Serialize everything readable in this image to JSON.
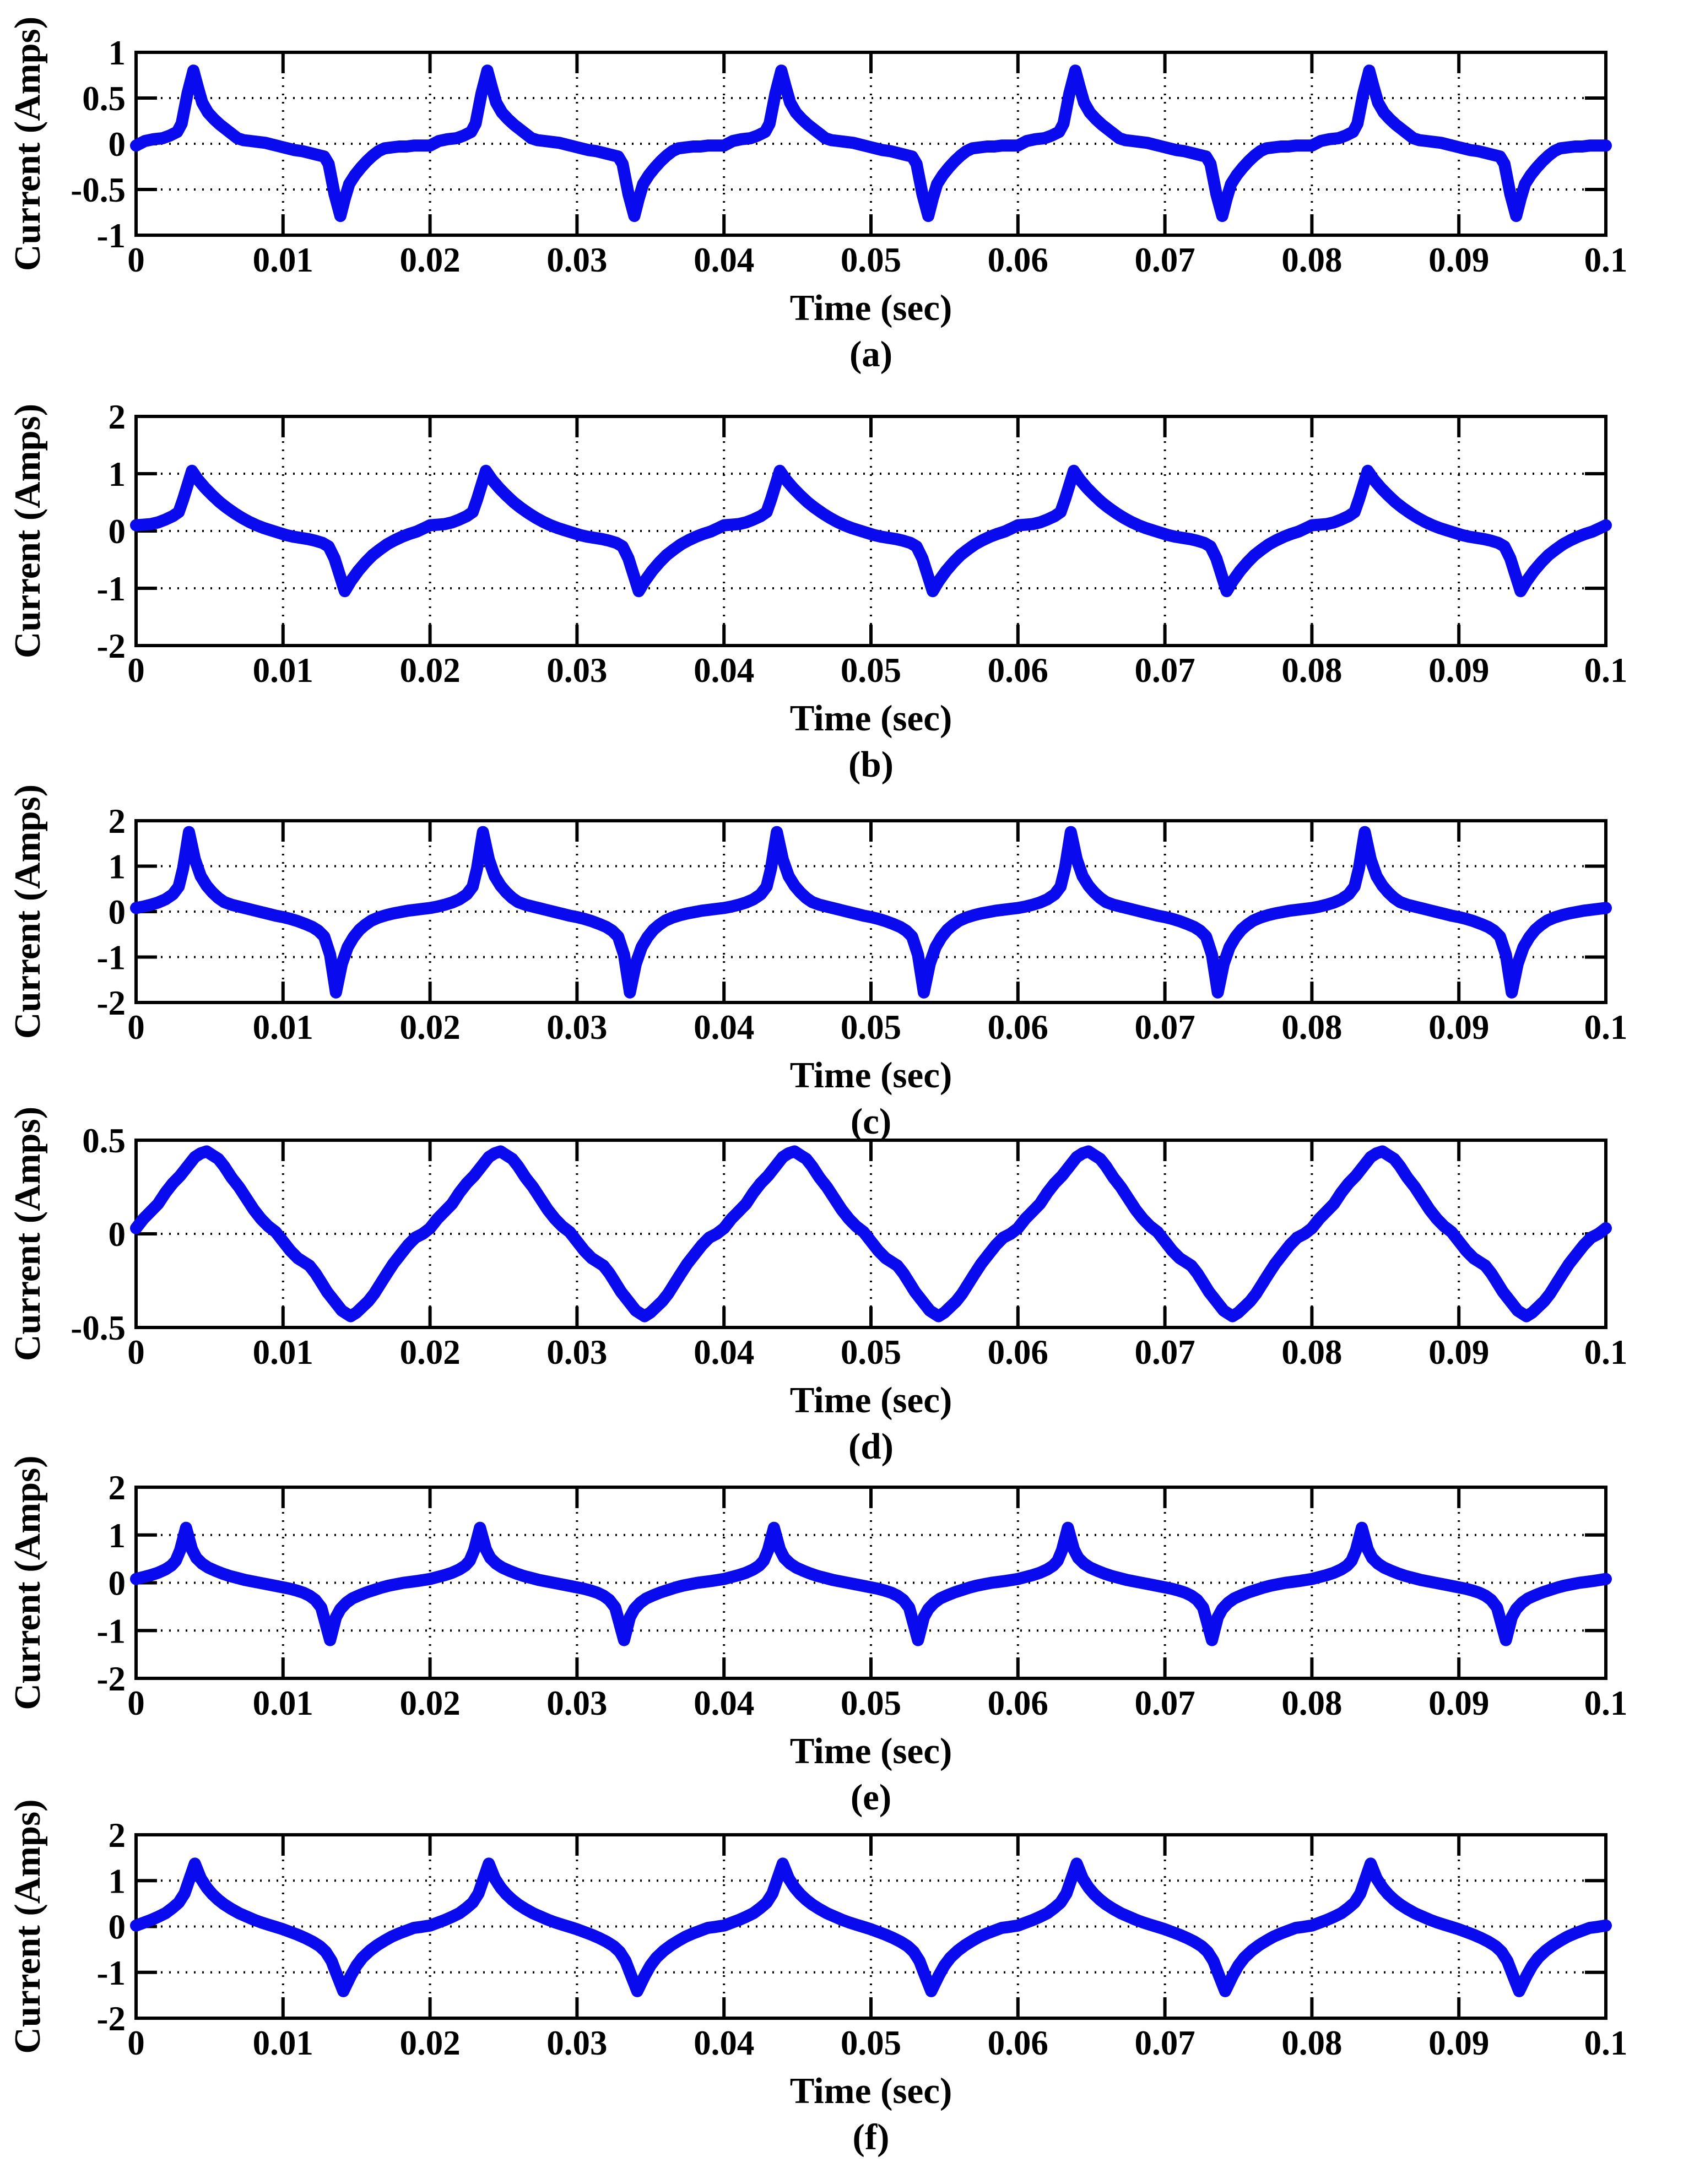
{
  "figure": {
    "background": "#FFFFFF",
    "axis_color": "#000000",
    "line_color": "#0A0AEE"
  },
  "chart_data": [
    {
      "id": "a",
      "type": "line",
      "caption": "(a)",
      "xlabel": "Time (sec)",
      "ylabel": "Current (Amps)",
      "xlim": [
        0,
        0.1
      ],
      "ylim": [
        -1,
        1
      ],
      "x_ticks": [
        0,
        0.01,
        0.02,
        0.03,
        0.04,
        0.05,
        0.06,
        0.07,
        0.08,
        0.09,
        0.1
      ],
      "x_tick_labels": [
        "0",
        "0.01",
        "0.02",
        "0.03",
        "0.04",
        "0.05",
        "0.06",
        "0.07",
        "0.08",
        "0.09",
        "0.1"
      ],
      "y_ticks": [
        1,
        0.5,
        0,
        -0.5,
        -1
      ],
      "y_tick_labels": [
        "1",
        "0.5",
        "0",
        "-0.5",
        "-1"
      ],
      "grid": "dotted",
      "legend": "none",
      "line_color": "#0A0AEE",
      "period_sec": 0.02,
      "cycles": 5,
      "peak_amp": 0.8,
      "min_amp": -0.79,
      "one_period_ms_amps": [
        [
          0,
          -0.02
        ],
        [
          0.6,
          0.03
        ],
        [
          1.2,
          0.05
        ],
        [
          1.8,
          0.06
        ],
        [
          2.3,
          0.09
        ],
        [
          2.8,
          0.13
        ],
        [
          3.1,
          0.22
        ],
        [
          3.5,
          0.55
        ],
        [
          3.9,
          0.8
        ],
        [
          4.2,
          0.62
        ],
        [
          4.5,
          0.45
        ],
        [
          4.9,
          0.34
        ],
        [
          5.3,
          0.27
        ],
        [
          5.7,
          0.21
        ],
        [
          6.1,
          0.16
        ],
        [
          6.5,
          0.11
        ],
        [
          6.9,
          0.06
        ],
        [
          7.3,
          0.04
        ],
        [
          7.8,
          0.03
        ],
        [
          8.3,
          0.02
        ],
        [
          8.8,
          0.01
        ],
        [
          9.3,
          -0.01
        ],
        [
          9.8,
          -0.03
        ],
        [
          10.3,
          -0.05
        ],
        [
          10.8,
          -0.07
        ],
        [
          11.3,
          -0.08
        ],
        [
          11.8,
          -0.1
        ],
        [
          12.3,
          -0.12
        ],
        [
          12.8,
          -0.14
        ],
        [
          13.1,
          -0.22
        ],
        [
          13.5,
          -0.55
        ],
        [
          13.9,
          -0.79
        ],
        [
          14.2,
          -0.6
        ],
        [
          14.5,
          -0.44
        ],
        [
          14.9,
          -0.34
        ],
        [
          15.3,
          -0.26
        ],
        [
          15.7,
          -0.19
        ],
        [
          16.1,
          -0.13
        ],
        [
          16.5,
          -0.08
        ],
        [
          16.9,
          -0.05
        ],
        [
          17.4,
          -0.04
        ],
        [
          17.9,
          -0.03
        ],
        [
          18.4,
          -0.03
        ],
        [
          18.9,
          -0.02
        ],
        [
          19.4,
          -0.02
        ],
        [
          20,
          -0.02
        ]
      ]
    },
    {
      "id": "b",
      "type": "line",
      "caption": "(b)",
      "xlabel": "Time (sec)",
      "ylabel": "Current (Amps)",
      "xlim": [
        0,
        0.1
      ],
      "ylim": [
        -2,
        2
      ],
      "x_ticks": [
        0,
        0.01,
        0.02,
        0.03,
        0.04,
        0.05,
        0.06,
        0.07,
        0.08,
        0.09,
        0.1
      ],
      "x_tick_labels": [
        "0",
        "0.01",
        "0.02",
        "0.03",
        "0.04",
        "0.05",
        "0.06",
        "0.07",
        "0.08",
        "0.09",
        "0.1"
      ],
      "y_ticks": [
        2,
        1,
        0,
        -1,
        -2
      ],
      "y_tick_labels": [
        "2",
        "1",
        "0",
        "-1",
        "-2"
      ],
      "grid": "dotted",
      "legend": "none",
      "line_color": "#0A0AEE",
      "period_sec": 0.02,
      "cycles": 5,
      "peak_amp": 1.05,
      "min_amp": -1.05,
      "one_period_ms_amps": [
        [
          0,
          0.1
        ],
        [
          0.5,
          0.11
        ],
        [
          1,
          0.12
        ],
        [
          1.5,
          0.15
        ],
        [
          2,
          0.2
        ],
        [
          2.5,
          0.26
        ],
        [
          2.9,
          0.33
        ],
        [
          3.2,
          0.55
        ],
        [
          3.8,
          1.05
        ],
        [
          4.2,
          0.9
        ],
        [
          4.7,
          0.75
        ],
        [
          5.2,
          0.62
        ],
        [
          5.7,
          0.5
        ],
        [
          6.2,
          0.4
        ],
        [
          6.7,
          0.31
        ],
        [
          7.2,
          0.23
        ],
        [
          7.7,
          0.16
        ],
        [
          8.2,
          0.1
        ],
        [
          8.7,
          0.05
        ],
        [
          9.2,
          0.01
        ],
        [
          9.7,
          -0.03
        ],
        [
          10.2,
          -0.07
        ],
        [
          10.7,
          -0.1
        ],
        [
          11.2,
          -0.12
        ],
        [
          11.7,
          -0.14
        ],
        [
          12.2,
          -0.17
        ],
        [
          12.7,
          -0.21
        ],
        [
          13.1,
          -0.27
        ],
        [
          13.5,
          -0.48
        ],
        [
          14.2,
          -1.05
        ],
        [
          14.6,
          -0.88
        ],
        [
          15.1,
          -0.7
        ],
        [
          15.6,
          -0.55
        ],
        [
          16.1,
          -0.42
        ],
        [
          16.6,
          -0.32
        ],
        [
          17.1,
          -0.23
        ],
        [
          17.6,
          -0.16
        ],
        [
          18.1,
          -0.1
        ],
        [
          18.6,
          -0.05
        ],
        [
          19.1,
          -0.01
        ],
        [
          19.6,
          0.05
        ],
        [
          20,
          0.1
        ]
      ]
    },
    {
      "id": "c",
      "type": "line",
      "caption": "(c)",
      "xlabel": "Time (sec)",
      "ylabel": "Current (Amps)",
      "xlim": [
        0,
        0.1
      ],
      "ylim": [
        -2,
        2
      ],
      "x_ticks": [
        0,
        0.01,
        0.02,
        0.03,
        0.04,
        0.05,
        0.06,
        0.07,
        0.08,
        0.09,
        0.1
      ],
      "x_tick_labels": [
        "0",
        "0.01",
        "0.02",
        "0.03",
        "0.04",
        "0.05",
        "0.06",
        "0.07",
        "0.08",
        "0.09",
        "0.1"
      ],
      "y_ticks": [
        2,
        1,
        0,
        -1,
        -2
      ],
      "y_tick_labels": [
        "2",
        "1",
        "0",
        "-1",
        "-2"
      ],
      "grid": "dotted",
      "legend": "none",
      "line_color": "#0A0AEE",
      "period_sec": 0.02,
      "cycles": 5,
      "peak_amp": 1.75,
      "min_amp": -1.78,
      "one_period_ms_amps": [
        [
          0,
          0.08
        ],
        [
          0.5,
          0.11
        ],
        [
          1,
          0.15
        ],
        [
          1.5,
          0.2
        ],
        [
          2,
          0.27
        ],
        [
          2.5,
          0.38
        ],
        [
          2.9,
          0.55
        ],
        [
          3.2,
          0.95
        ],
        [
          3.6,
          1.75
        ],
        [
          4,
          1.15
        ],
        [
          4.4,
          0.78
        ],
        [
          4.8,
          0.57
        ],
        [
          5.2,
          0.42
        ],
        [
          5.6,
          0.3
        ],
        [
          6,
          0.21
        ],
        [
          6.5,
          0.15
        ],
        [
          7,
          0.11
        ],
        [
          7.5,
          0.07
        ],
        [
          8,
          0.03
        ],
        [
          8.5,
          -0.01
        ],
        [
          9,
          -0.05
        ],
        [
          9.5,
          -0.09
        ],
        [
          10,
          -0.12
        ],
        [
          10.5,
          -0.16
        ],
        [
          11,
          -0.21
        ],
        [
          11.5,
          -0.27
        ],
        [
          12,
          -0.34
        ],
        [
          12.4,
          -0.42
        ],
        [
          12.8,
          -0.55
        ],
        [
          13.2,
          -0.95
        ],
        [
          13.6,
          -1.78
        ],
        [
          14,
          -1.15
        ],
        [
          14.4,
          -0.78
        ],
        [
          14.8,
          -0.56
        ],
        [
          15.2,
          -0.4
        ],
        [
          15.6,
          -0.29
        ],
        [
          16,
          -0.2
        ],
        [
          16.5,
          -0.13
        ],
        [
          17,
          -0.08
        ],
        [
          17.5,
          -0.04
        ],
        [
          18,
          -0.01
        ],
        [
          18.5,
          0.02
        ],
        [
          19,
          0.04
        ],
        [
          19.5,
          0.06
        ],
        [
          20,
          0.08
        ]
      ]
    },
    {
      "id": "d",
      "type": "line",
      "caption": "(d)",
      "xlabel": "Time (sec)",
      "ylabel": "Current (Amps)",
      "xlim": [
        0,
        0.1
      ],
      "ylim": [
        -0.5,
        0.5
      ],
      "x_ticks": [
        0,
        0.01,
        0.02,
        0.03,
        0.04,
        0.05,
        0.06,
        0.07,
        0.08,
        0.09,
        0.1
      ],
      "x_tick_labels": [
        "0",
        "0.01",
        "0.02",
        "0.03",
        "0.04",
        "0.05",
        "0.06",
        "0.07",
        "0.08",
        "0.09",
        "0.1"
      ],
      "y_ticks": [
        0.5,
        0,
        -0.5
      ],
      "y_tick_labels": [
        "0.5",
        "0",
        "-0.5"
      ],
      "grid": "dotted",
      "legend": "none",
      "line_color": "#0A0AEE",
      "period_sec": 0.02,
      "cycles": 5,
      "peak_amp": 0.44,
      "min_amp": -0.44,
      "one_period_ms_amps": [
        [
          0,
          0.03
        ],
        [
          0.5,
          0.08
        ],
        [
          1,
          0.12
        ],
        [
          1.5,
          0.16
        ],
        [
          2,
          0.22
        ],
        [
          2.5,
          0.27
        ],
        [
          3,
          0.31
        ],
        [
          3.5,
          0.36
        ],
        [
          4,
          0.41
        ],
        [
          4.4,
          0.43
        ],
        [
          4.8,
          0.44
        ],
        [
          5.2,
          0.42
        ],
        [
          5.6,
          0.4
        ],
        [
          6,
          0.36
        ],
        [
          6.5,
          0.3
        ],
        [
          7,
          0.25
        ],
        [
          7.5,
          0.19
        ],
        [
          8,
          0.13
        ],
        [
          8.5,
          0.08
        ],
        [
          9,
          0.04
        ],
        [
          9.5,
          0.01
        ],
        [
          10,
          -0.04
        ],
        [
          10.5,
          -0.09
        ],
        [
          11,
          -0.13
        ],
        [
          11.4,
          -0.15
        ],
        [
          11.8,
          -0.17
        ],
        [
          12.2,
          -0.21
        ],
        [
          12.6,
          -0.26
        ],
        [
          13,
          -0.31
        ],
        [
          13.5,
          -0.36
        ],
        [
          14,
          -0.41
        ],
        [
          14.6,
          -0.44
        ],
        [
          15,
          -0.42
        ],
        [
          15.4,
          -0.39
        ],
        [
          15.8,
          -0.36
        ],
        [
          16.2,
          -0.32
        ],
        [
          16.6,
          -0.27
        ],
        [
          17,
          -0.22
        ],
        [
          17.5,
          -0.16
        ],
        [
          18,
          -0.11
        ],
        [
          18.5,
          -0.06
        ],
        [
          19,
          -0.02
        ],
        [
          19.5,
          0.0
        ],
        [
          20,
          0.03
        ]
      ]
    },
    {
      "id": "e",
      "type": "line",
      "caption": "(e)",
      "xlabel": "Time (sec)",
      "ylabel": "Current (Amps)",
      "xlim": [
        0,
        0.1
      ],
      "ylim": [
        -2,
        2
      ],
      "x_ticks": [
        0,
        0.01,
        0.02,
        0.03,
        0.04,
        0.05,
        0.06,
        0.07,
        0.08,
        0.09,
        0.1
      ],
      "x_tick_labels": [
        "0",
        "0.01",
        "0.02",
        "0.03",
        "0.04",
        "0.05",
        "0.06",
        "0.07",
        "0.08",
        "0.09",
        "0.1"
      ],
      "y_ticks": [
        2,
        1,
        0,
        -1,
        -2
      ],
      "y_tick_labels": [
        "2",
        "1",
        "0",
        "-1",
        "-2"
      ],
      "grid": "dotted",
      "legend": "none",
      "line_color": "#0A0AEE",
      "period_sec": 0.02,
      "cycles": 5,
      "peak_amp": 1.15,
      "min_amp": -1.2,
      "one_period_ms_amps": [
        [
          0,
          0.08
        ],
        [
          0.5,
          0.12
        ],
        [
          1,
          0.16
        ],
        [
          1.5,
          0.21
        ],
        [
          2,
          0.28
        ],
        [
          2.4,
          0.36
        ],
        [
          2.7,
          0.46
        ],
        [
          3,
          0.68
        ],
        [
          3.4,
          1.15
        ],
        [
          3.8,
          0.7
        ],
        [
          4.1,
          0.52
        ],
        [
          4.5,
          0.4
        ],
        [
          4.9,
          0.32
        ],
        [
          5.4,
          0.25
        ],
        [
          5.9,
          0.19
        ],
        [
          6.4,
          0.14
        ],
        [
          6.9,
          0.1
        ],
        [
          7.4,
          0.06
        ],
        [
          7.9,
          0.03
        ],
        [
          8.4,
          0.0
        ],
        [
          8.9,
          -0.03
        ],
        [
          9.4,
          -0.06
        ],
        [
          9.9,
          -0.09
        ],
        [
          10.4,
          -0.12
        ],
        [
          10.9,
          -0.16
        ],
        [
          11.4,
          -0.21
        ],
        [
          11.8,
          -0.27
        ],
        [
          12.2,
          -0.36
        ],
        [
          12.6,
          -0.52
        ],
        [
          13.2,
          -1.2
        ],
        [
          13.6,
          -0.72
        ],
        [
          13.9,
          -0.55
        ],
        [
          14.3,
          -0.42
        ],
        [
          14.7,
          -0.33
        ],
        [
          15.2,
          -0.26
        ],
        [
          15.7,
          -0.2
        ],
        [
          16.2,
          -0.15
        ],
        [
          16.7,
          -0.1
        ],
        [
          17.2,
          -0.06
        ],
        [
          17.7,
          -0.03
        ],
        [
          18.2,
          0.0
        ],
        [
          18.7,
          0.02
        ],
        [
          19.2,
          0.04
        ],
        [
          19.6,
          0.06
        ],
        [
          20,
          0.08
        ]
      ]
    },
    {
      "id": "f",
      "type": "line",
      "caption": "(f)",
      "xlabel": "Time (sec)",
      "ylabel": "Current (Amps)",
      "xlim": [
        0,
        0.1
      ],
      "ylim": [
        -2,
        2
      ],
      "x_ticks": [
        0,
        0.01,
        0.02,
        0.03,
        0.04,
        0.05,
        0.06,
        0.07,
        0.08,
        0.09,
        0.1
      ],
      "x_tick_labels": [
        "0",
        "0.01",
        "0.02",
        "0.03",
        "0.04",
        "0.05",
        "0.06",
        "0.07",
        "0.08",
        "0.09",
        "0.1"
      ],
      "y_ticks": [
        2,
        1,
        0,
        -1,
        -2
      ],
      "y_tick_labels": [
        "2",
        "1",
        "0",
        "-1",
        "-2"
      ],
      "grid": "dotted",
      "legend": "none",
      "line_color": "#0A0AEE",
      "period_sec": 0.02,
      "cycles": 5,
      "peak_amp": 1.37,
      "min_amp": -1.41,
      "one_period_ms_amps": [
        [
          0,
          0.02
        ],
        [
          0.5,
          0.08
        ],
        [
          1,
          0.14
        ],
        [
          1.5,
          0.21
        ],
        [
          2,
          0.29
        ],
        [
          2.5,
          0.41
        ],
        [
          2.9,
          0.52
        ],
        [
          3.3,
          0.72
        ],
        [
          3.6,
          1.0
        ],
        [
          4,
          1.37
        ],
        [
          4.4,
          1.05
        ],
        [
          4.8,
          0.85
        ],
        [
          5.2,
          0.7
        ],
        [
          5.6,
          0.58
        ],
        [
          6,
          0.48
        ],
        [
          6.5,
          0.38
        ],
        [
          7,
          0.29
        ],
        [
          7.5,
          0.22
        ],
        [
          8,
          0.15
        ],
        [
          8.5,
          0.09
        ],
        [
          9,
          0.04
        ],
        [
          9.5,
          -0.01
        ],
        [
          10,
          -0.06
        ],
        [
          10.5,
          -0.12
        ],
        [
          11,
          -0.18
        ],
        [
          11.5,
          -0.25
        ],
        [
          12,
          -0.33
        ],
        [
          12.5,
          -0.43
        ],
        [
          12.9,
          -0.55
        ],
        [
          13.3,
          -0.75
        ],
        [
          13.6,
          -1.0
        ],
        [
          14.1,
          -1.41
        ],
        [
          14.6,
          -1.08
        ],
        [
          15,
          -0.85
        ],
        [
          15.4,
          -0.68
        ],
        [
          15.9,
          -0.53
        ],
        [
          16.4,
          -0.41
        ],
        [
          16.9,
          -0.31
        ],
        [
          17.4,
          -0.22
        ],
        [
          17.9,
          -0.15
        ],
        [
          18.4,
          -0.09
        ],
        [
          18.9,
          -0.03
        ],
        [
          19.4,
          -0.01
        ],
        [
          20,
          0.02
        ]
      ]
    }
  ]
}
